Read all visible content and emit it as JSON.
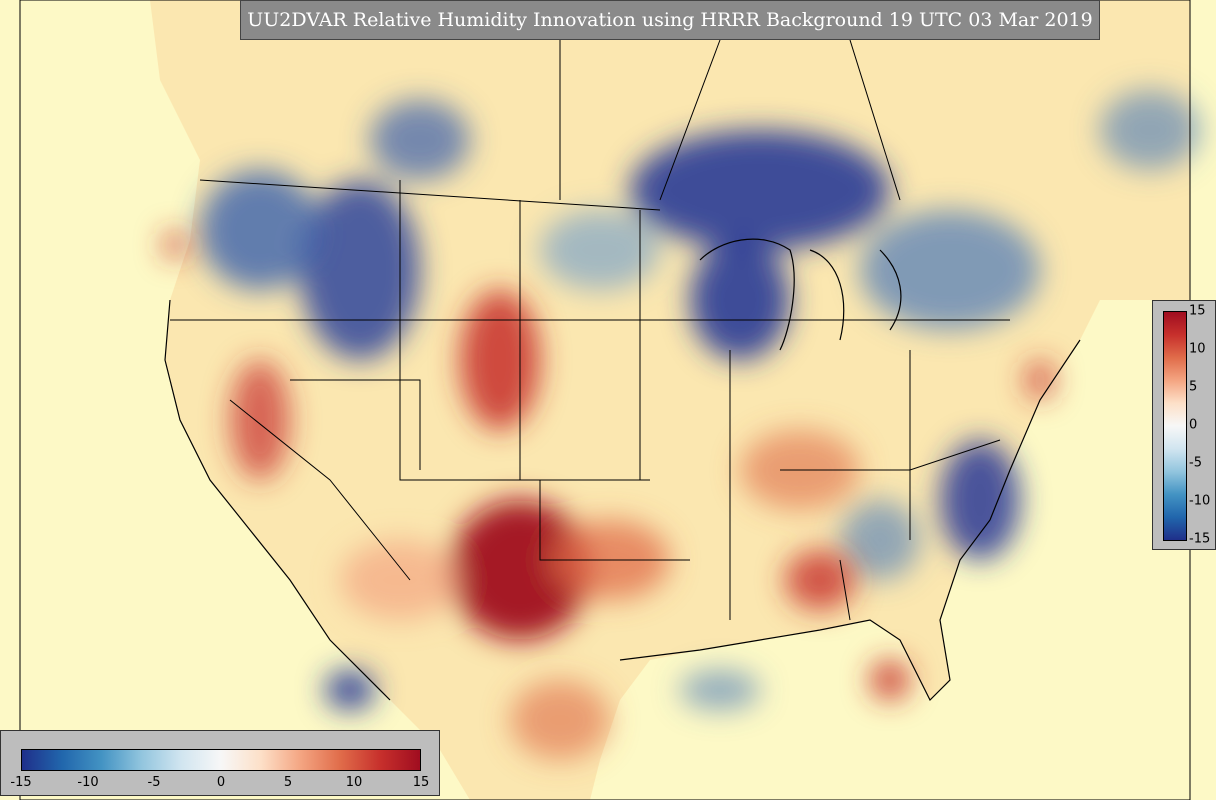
{
  "title": "UU2DVAR Relative Humidity Innovation using HRRR Background 19 UTC 03 Mar 2019",
  "colors": {
    "ocean_background": "#fdf9c6",
    "strong_negative": "#1f2f8a",
    "negative": "#4393c3",
    "neutral": "#f7f7f7",
    "positive": "#f4a582",
    "strong_positive": "#a00d20",
    "colorbar_panel": "#bdbdbd",
    "title_panel": "#8a8a8a"
  },
  "colorbar_vertical": {
    "ticks": [
      "15",
      "10",
      "5",
      "0",
      "-5",
      "-10",
      "-15"
    ]
  },
  "colorbar_horizontal": {
    "ticks": [
      "-15",
      "-10",
      "-5",
      "0",
      "5",
      "10",
      "15"
    ]
  }
}
